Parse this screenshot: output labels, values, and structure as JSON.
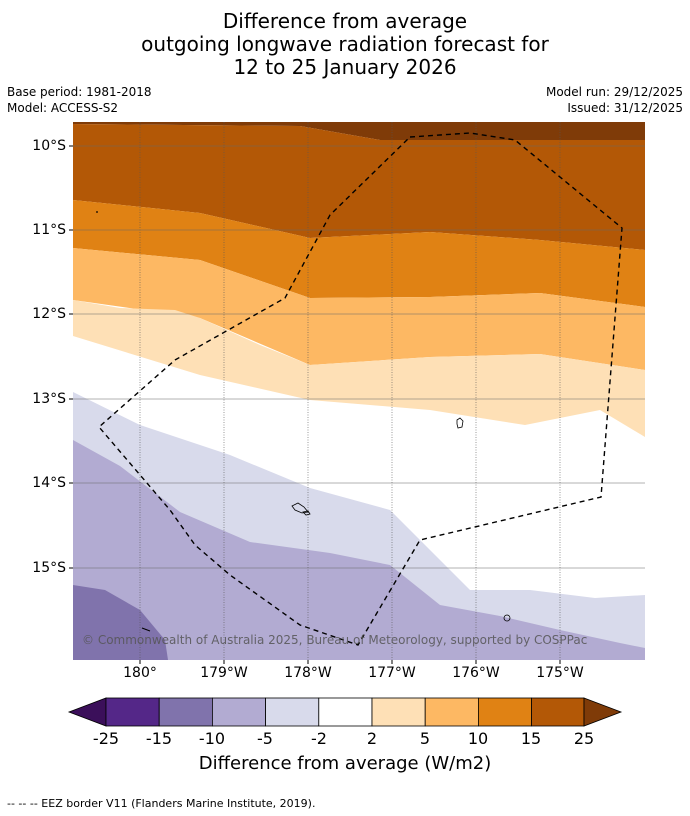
{
  "title": {
    "line1": "Difference from average",
    "line2": "outgoing longwave radiation forecast for",
    "line3": "12 to 25 January 2026"
  },
  "meta": {
    "base_period": "Base period: 1981-2018",
    "model": "Model: ACCESS-S2",
    "model_run": "Model run: 29/12/2025",
    "issued": "Issued: 31/12/2025"
  },
  "map": {
    "lat_labels": [
      "10°S",
      "11°S",
      "12°S",
      "13°S",
      "14°S",
      "15°S"
    ],
    "lon_labels": [
      "180°",
      "179°W",
      "178°W",
      "177°W",
      "176°W",
      "175°W"
    ],
    "copyright": "© Commonwealth of Australia 2025, Bureau of Meteorology, supported by COSPPac"
  },
  "colorbar": {
    "ticks": [
      "-25",
      "-15",
      "-10",
      "-5",
      "-2",
      "2",
      "5",
      "10",
      "15",
      "25"
    ],
    "colors": [
      "#3b0f5a",
      "#542788",
      "#8073ac",
      "#b2abd2",
      "#d8daeb",
      "#ffffff",
      "#fee0b6",
      "#fdb863",
      "#e08214",
      "#b35806",
      "#7f3b08"
    ],
    "label": "Difference from average (W/m2)"
  },
  "footnote": "--  --  -- EEZ border V11 (Flanders Marine Institute, 2019)."
}
